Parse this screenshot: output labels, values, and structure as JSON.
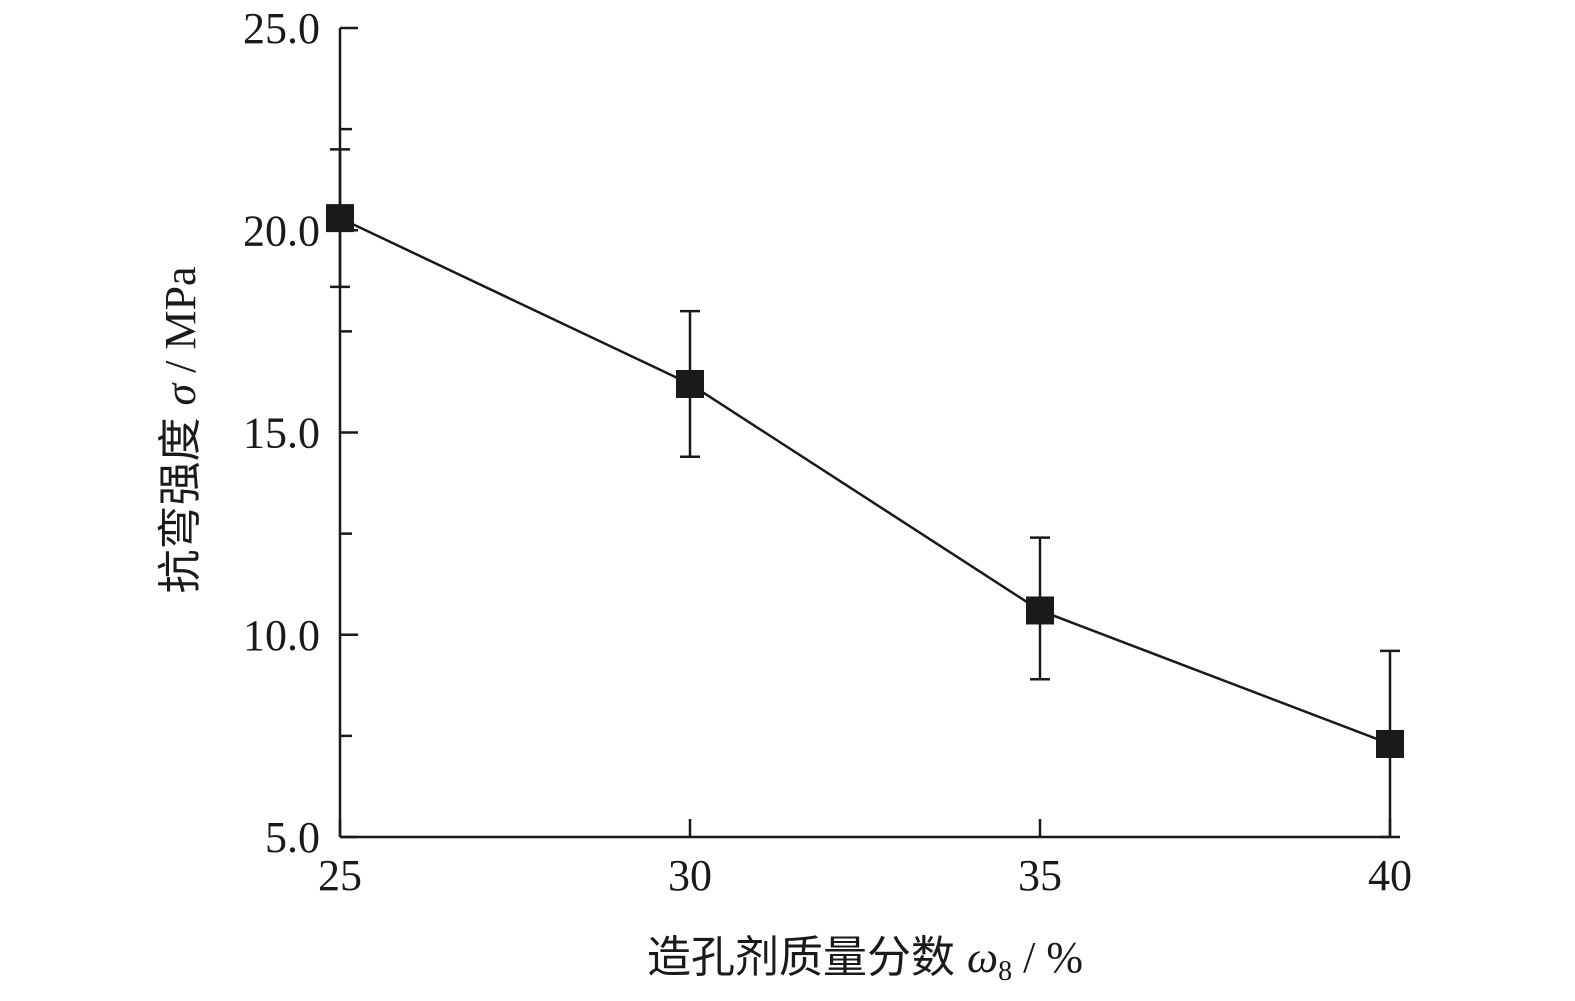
{
  "chart_data": {
    "type": "line",
    "title": "",
    "xlabel": "造孔剂质量分数",
    "xlabel_symbol": "ω",
    "xlabel_subscript": "8",
    "xlabel_unit": " / %",
    "ylabel": "抗弯强度",
    "ylabel_symbol": "σ",
    "ylabel_unit": " / MPa",
    "x": [
      25,
      30,
      35,
      40
    ],
    "xlim": [
      25,
      40
    ],
    "ylim": [
      5.0,
      25.0
    ],
    "xticks": [
      "25",
      "30",
      "35",
      "40"
    ],
    "yticks": [
      "5.0",
      "10.0",
      "15.0",
      "20.0",
      "25.0"
    ],
    "grid": false,
    "marker": "square",
    "series": [
      {
        "values": [
          20.3,
          16.2,
          10.6,
          7.3
        ],
        "error_low": [
          18.6,
          14.4,
          8.9,
          5.0
        ],
        "error_high": [
          22.0,
          18.0,
          12.4,
          9.6
        ]
      }
    ]
  }
}
